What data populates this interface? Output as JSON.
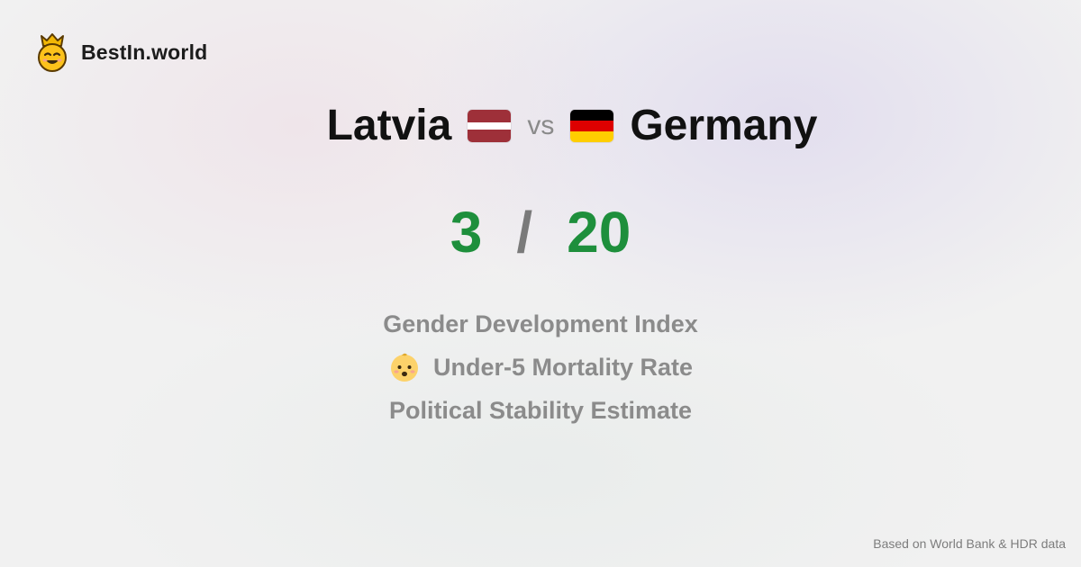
{
  "brand": {
    "name": "BestIn.world",
    "logo_icon": "crown-smiley-icon"
  },
  "comparison": {
    "left_country": "Latvia",
    "left_flag_icon": "latvia-flag-icon",
    "vs_label": "vs",
    "right_country": "Germany",
    "right_flag_icon": "germany-flag-icon"
  },
  "score": {
    "left": "3",
    "separator": "/",
    "right": "20",
    "color": "#1e8f3c"
  },
  "metrics": [
    {
      "label": "Gender Development Index",
      "icon": ""
    },
    {
      "label": "Under-5 Mortality Rate",
      "icon": "baby-face-icon"
    },
    {
      "label": "Political Stability Estimate",
      "icon": ""
    }
  ],
  "footer": {
    "source_text": "Based on World Bank & HDR data"
  },
  "colors": {
    "latvia_flag": [
      "#9e3039",
      "#ffffff",
      "#9e3039"
    ],
    "germany_flag": [
      "#000000",
      "#dd0000",
      "#ffce00"
    ]
  }
}
